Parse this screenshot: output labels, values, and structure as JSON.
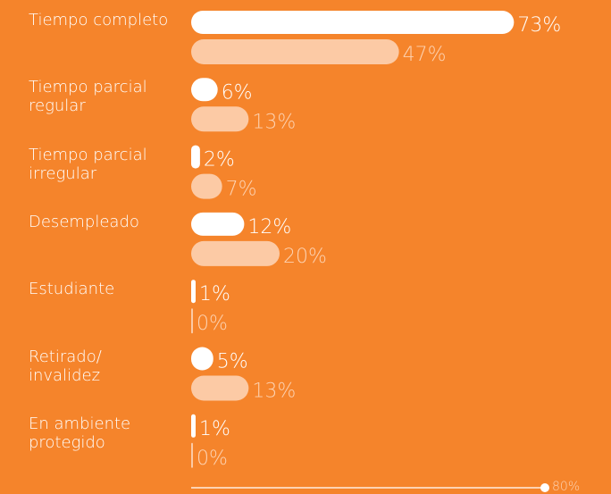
{
  "chart_data": {
    "type": "bar",
    "orientation": "horizontal",
    "categories": [
      "Tiempo completo",
      "Tiempo parcial regular",
      "Tiempo parcial irregular",
      "Desempleado",
      "Estudiante",
      "Retirado/ invalidez",
      "En ambiente protegido"
    ],
    "series": [
      {
        "color": "#ffffff",
        "values": [
          73,
          6,
          2,
          12,
          1,
          5,
          1
        ],
        "value_labels": [
          "73%",
          "6%",
          "2%",
          "12%",
          "1%",
          "5%",
          "1%"
        ]
      },
      {
        "color": "#fccaa5",
        "values": [
          47,
          13,
          7,
          20,
          0,
          13,
          0
        ],
        "value_labels": [
          "47%",
          "13%",
          "7%",
          "20%",
          "0%",
          "13%",
          "0%"
        ]
      }
    ],
    "xlim": [
      0,
      80
    ],
    "xticks": [
      {
        "value": 80,
        "label": "80%"
      }
    ]
  }
}
